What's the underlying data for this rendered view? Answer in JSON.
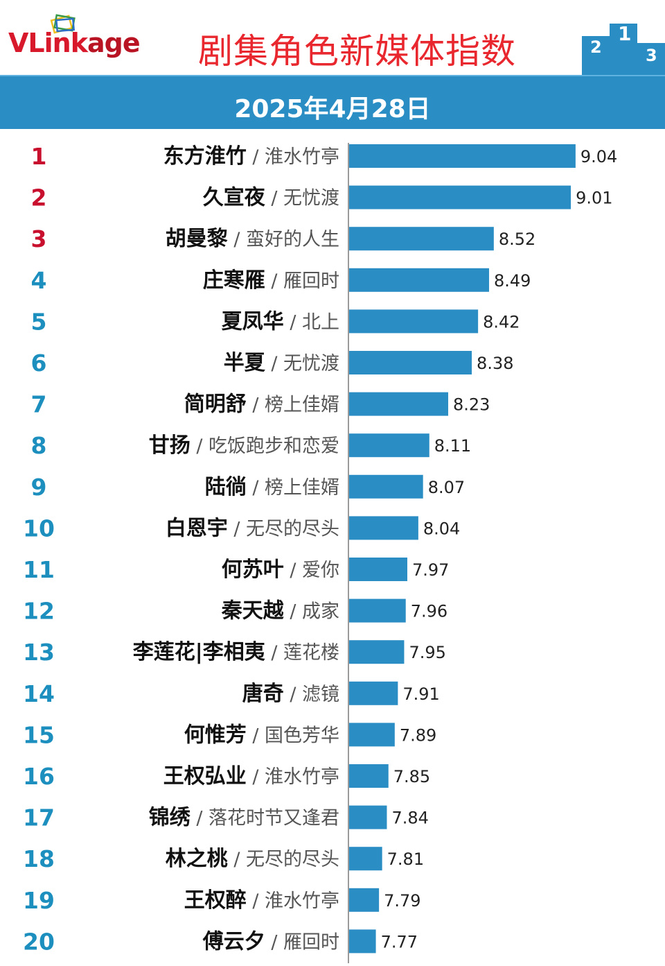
{
  "header": {
    "logo_text": "VLinkage",
    "title": "剧集角色新媒体指数",
    "date": "2025年4月28日"
  },
  "colors": {
    "bar": "#2a8dc4",
    "top_rank": "#c8102e",
    "rank": "#1c8fbf",
    "title": "#e8282e",
    "band": "#2a8dc4"
  },
  "chart_data": {
    "type": "bar",
    "orientation": "horizontal",
    "title": "剧集角色新媒体指数",
    "subtitle": "2025年4月28日",
    "rows": [
      {
        "rank": "1",
        "name": "东方淮竹",
        "show": "淮水竹亭",
        "value": 9.04
      },
      {
        "rank": "2",
        "name": "久宣夜",
        "show": "无忧渡",
        "value": 9.01
      },
      {
        "rank": "3",
        "name": "胡曼黎",
        "show": "蛮好的人生",
        "value": 8.52
      },
      {
        "rank": "4",
        "name": "庄寒雁",
        "show": "雁回时",
        "value": 8.49
      },
      {
        "rank": "5",
        "name": "夏凤华",
        "show": "北上",
        "value": 8.42
      },
      {
        "rank": "6",
        "name": "半夏",
        "show": "无忧渡",
        "value": 8.38
      },
      {
        "rank": "7",
        "name": "简明舒",
        "show": "榜上佳婿",
        "value": 8.23
      },
      {
        "rank": "8",
        "name": "甘扬",
        "show": "吃饭跑步和恋爱",
        "value": 8.11
      },
      {
        "rank": "9",
        "name": "陆徜",
        "show": "榜上佳婿",
        "value": 8.07
      },
      {
        "rank": "10",
        "name": "白恩宇",
        "show": "无尽的尽头",
        "value": 8.04
      },
      {
        "rank": "11",
        "name": "何苏叶",
        "show": "爱你",
        "value": 7.97
      },
      {
        "rank": "12",
        "name": "秦天越",
        "show": "成家",
        "value": 7.96
      },
      {
        "rank": "13",
        "name": "李莲花|李相夷",
        "show": "莲花楼",
        "value": 7.95
      },
      {
        "rank": "14",
        "name": "唐奇",
        "show": "滤镜",
        "value": 7.91
      },
      {
        "rank": "15",
        "name": "何惟芳",
        "show": "国色芳华",
        "value": 7.89
      },
      {
        "rank": "16",
        "name": "王权弘业",
        "show": "淮水竹亭",
        "value": 7.85
      },
      {
        "rank": "17",
        "name": "锦绣",
        "show": "落花时节又逢君",
        "value": 7.84
      },
      {
        "rank": "18",
        "name": "林之桃",
        "show": "无尽的尽头",
        "value": 7.81
      },
      {
        "rank": "19",
        "name": "王权醉",
        "show": "淮水竹亭",
        "value": 7.79
      },
      {
        "rank": "20",
        "name": "傅云夕",
        "show": "雁回时",
        "value": 7.77
      }
    ]
  }
}
